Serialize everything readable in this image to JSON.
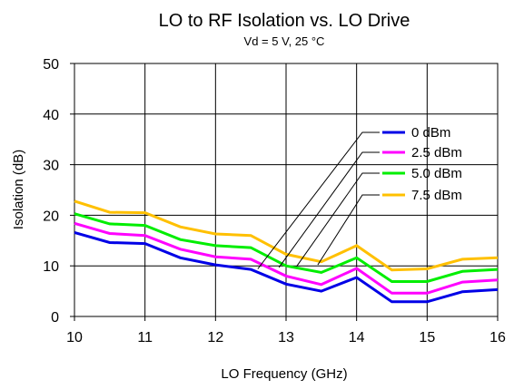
{
  "chart_data": {
    "type": "line",
    "title": "LO to RF Isolation  vs. LO Drive",
    "subtitle": "Vd = 5 V,  25 °C",
    "xlabel": "LO Frequency (GHz)",
    "ylabel": "Isolation (dB)",
    "xlim": [
      10,
      16
    ],
    "ylim": [
      0,
      50
    ],
    "xticks": [
      "10",
      "11",
      "12",
      "13",
      "14",
      "15",
      "16"
    ],
    "yticks": [
      "0",
      "10",
      "20",
      "30",
      "40",
      "50"
    ],
    "grid": true,
    "legend_position": "right",
    "x": [
      10,
      10.5,
      11,
      11.5,
      12,
      12.5,
      13,
      13.5,
      14,
      14.5,
      15,
      15.5,
      16
    ],
    "series": [
      {
        "name": "0 dBm",
        "color": "#0000e6",
        "values": [
          16.6,
          14.6,
          14.4,
          11.6,
          10.2,
          9.3,
          6.4,
          5.0,
          7.7,
          2.9,
          2.9,
          4.9,
          5.3
        ]
      },
      {
        "name": "2.5 dBm",
        "color": "#ff00ff",
        "values": [
          18.4,
          16.4,
          16.0,
          13.3,
          11.8,
          11.3,
          8.0,
          6.3,
          9.5,
          4.6,
          4.6,
          6.8,
          7.2
        ]
      },
      {
        "name": "5.0 dBm",
        "color": "#00ee00",
        "values": [
          20.3,
          18.3,
          18.0,
          15.2,
          14.0,
          13.6,
          10.0,
          8.7,
          11.6,
          6.9,
          6.9,
          8.9,
          9.3
        ]
      },
      {
        "name": "7.5 dBm",
        "color": "#ffc000",
        "values": [
          22.8,
          20.6,
          20.5,
          17.7,
          16.3,
          16.0,
          12.3,
          10.8,
          14.0,
          9.2,
          9.4,
          11.3,
          11.6
        ]
      }
    ]
  }
}
